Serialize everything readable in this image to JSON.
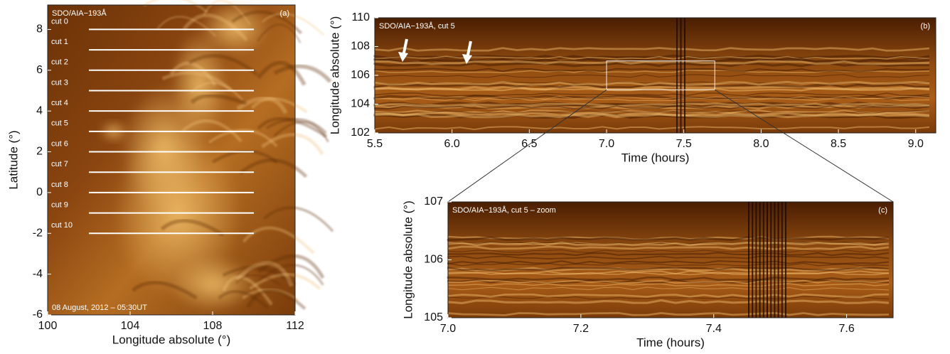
{
  "chart_data": [
    {
      "type": "image",
      "panel": "(a)",
      "annotations": [
        "SDO/AIA−193Å",
        "08 August, 2012 – 05:30UT"
      ],
      "xlabel": "Longitude absolute (°)",
      "ylabel": "Latitude (°)",
      "xlim": [
        100,
        112
      ],
      "ylim": [
        -6,
        9.2
      ],
      "xticks": [
        100,
        104,
        108,
        112
      ],
      "yticks": [
        -6,
        -4,
        -2,
        0,
        2,
        4,
        6,
        8
      ],
      "cuts": [
        {
          "label": "cut 0",
          "lat": 8,
          "lon": [
            102,
            110
          ]
        },
        {
          "label": "cut 1",
          "lat": 7,
          "lon": [
            102,
            110
          ]
        },
        {
          "label": "cut 2",
          "lat": 6,
          "lon": [
            102,
            110
          ]
        },
        {
          "label": "cut 3",
          "lat": 5,
          "lon": [
            102,
            110
          ]
        },
        {
          "label": "cut 4",
          "lat": 4,
          "lon": [
            102,
            110
          ]
        },
        {
          "label": "cut 5",
          "lat": 3,
          "lon": [
            102,
            110
          ]
        },
        {
          "label": "cut 6",
          "lat": 2,
          "lon": [
            102,
            110
          ]
        },
        {
          "label": "cut 7",
          "lat": 1,
          "lon": [
            102,
            110
          ]
        },
        {
          "label": "cut 8",
          "lat": 0,
          "lon": [
            102,
            110
          ]
        },
        {
          "label": "cut 9",
          "lat": -1,
          "lon": [
            102,
            110
          ]
        },
        {
          "label": "cut 10",
          "lat": -2,
          "lon": [
            102,
            110
          ]
        }
      ]
    },
    {
      "type": "image",
      "panel": "(b)",
      "annotations": [
        "SDO/AIA−193Å, cut 5"
      ],
      "xlabel": "Time (hours)",
      "ylabel": "Longitude absolute (°)",
      "xlim": [
        5.5,
        9.13
      ],
      "ylim": [
        102,
        110
      ],
      "xticks": [
        5.5,
        {
          "value": 6,
          "label": "6.0"
        },
        6.5,
        {
          "value": 7,
          "label": "7.0"
        },
        7.5,
        {
          "value": 8,
          "label": "8.0"
        },
        8.5,
        {
          "value": 9,
          "label": "9.0"
        }
      ],
      "yticks": [
        102,
        104,
        106,
        108,
        110
      ],
      "zoom": {
        "xlim": [
          7.0,
          7.7
        ],
        "ylim": [
          105,
          107
        ]
      }
    },
    {
      "type": "image",
      "panel": "(c)",
      "annotations": [
        "SDO/AIA−193Å, cut 5 – zoom"
      ],
      "xlabel": "Time (hours)",
      "ylabel": "Longitude absolute (°)",
      "xlim": [
        7.0,
        7.67
      ],
      "ylim": [
        105,
        107
      ],
      "xticks": [
        {
          "value": 7,
          "label": "7.0"
        },
        7.2,
        7.4,
        7.6
      ],
      "yticks": [
        105,
        106,
        107
      ]
    }
  ]
}
